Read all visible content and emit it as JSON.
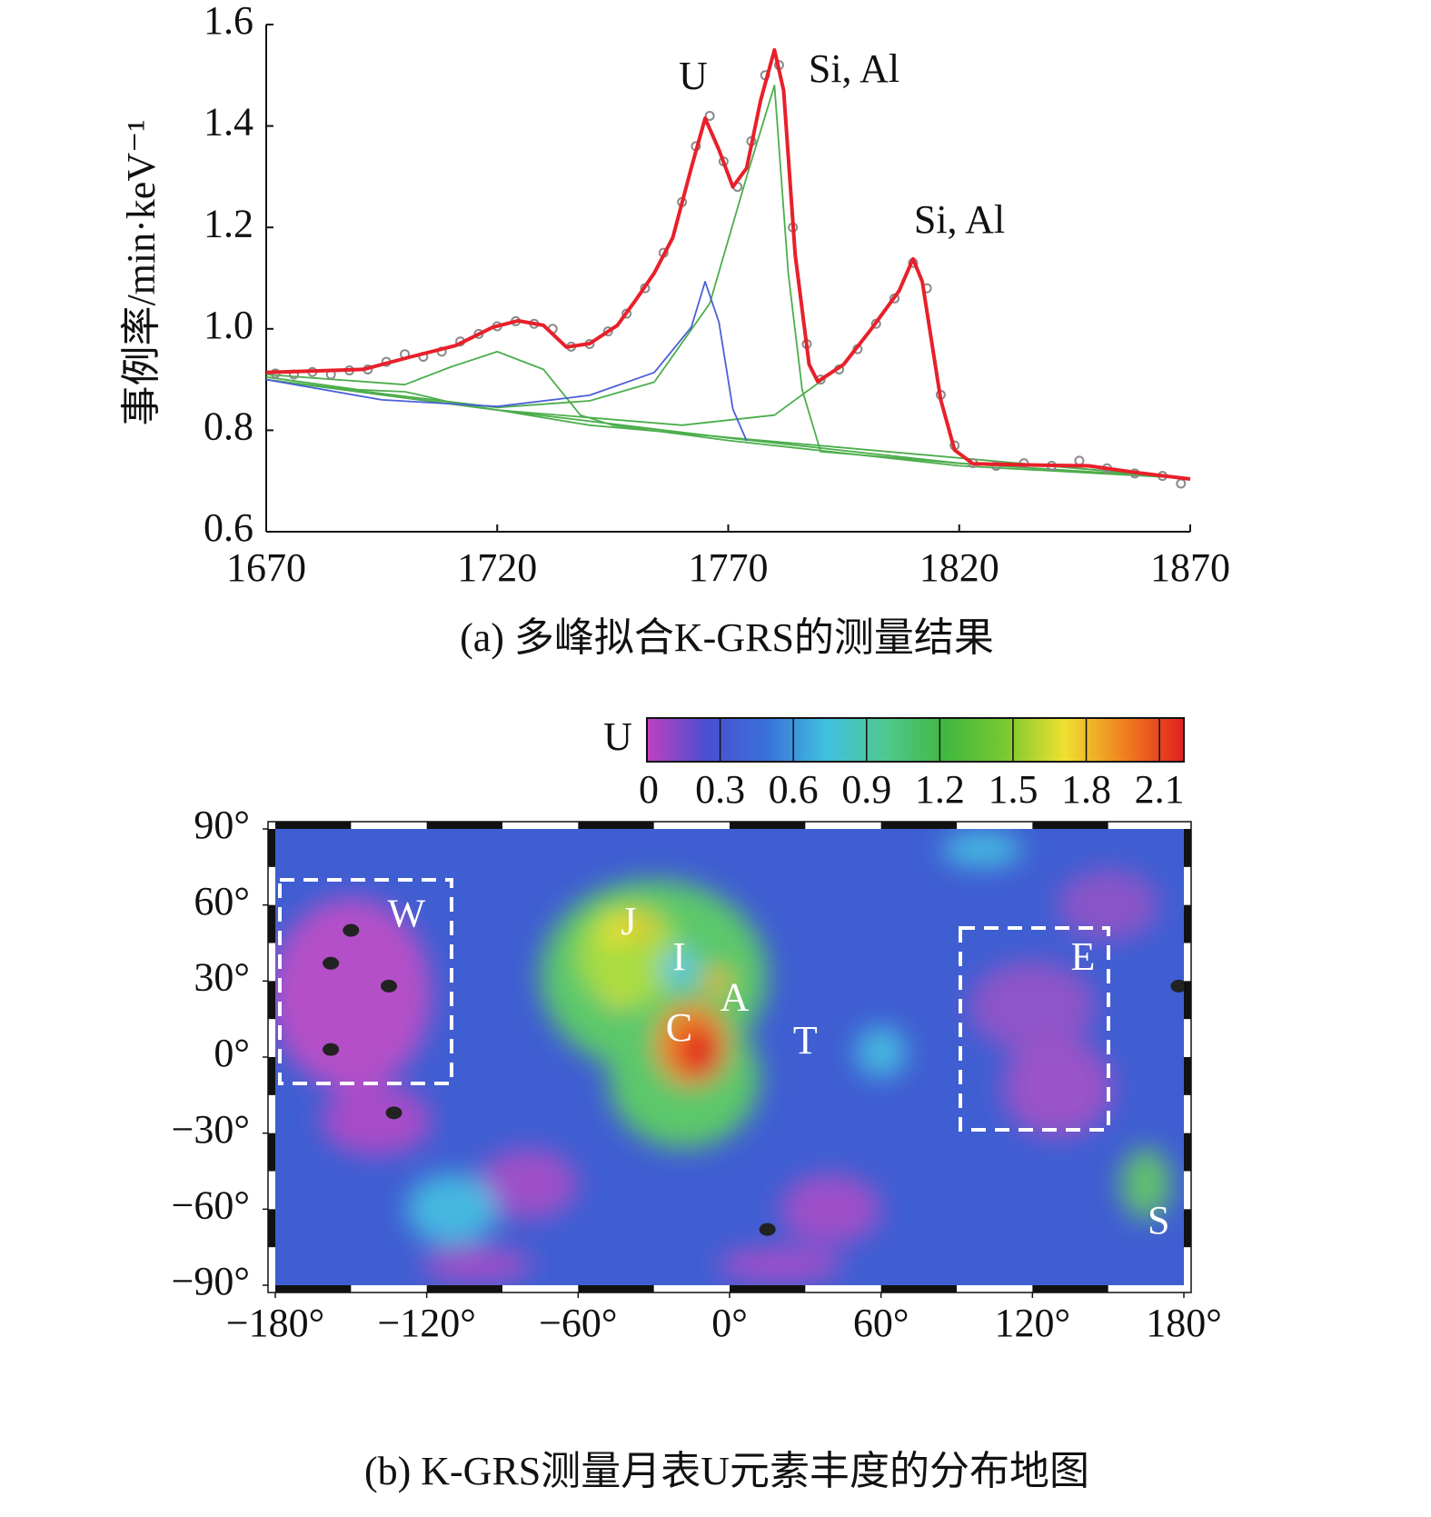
{
  "chart_data": [
    {
      "type": "line",
      "caption": "(a) 多峰拟合K-GRS的测量结果",
      "ylabel": "事例率/min·keV⁻¹",
      "xlim": [
        1670,
        1870
      ],
      "ylim": [
        0.6,
        1.6
      ],
      "xticks": [
        1670,
        1720,
        1770,
        1820,
        1870
      ],
      "yticks": [
        0.6,
        0.8,
        {
          "value": 1,
          "label": "1.0"
        },
        1.2,
        1.4,
        1.6
      ],
      "annotations": [
        "U",
        "Si, Al",
        "Si, Al"
      ],
      "series": [
        {
          "style": "line",
          "color": "#4cae4c",
          "x": [
            1670,
            1720,
            1770,
            1820,
            1870
          ],
          "values": [
            0.9,
            0.84,
            0.785,
            0.735,
            0.705
          ]
        },
        {
          "style": "line",
          "color": "#4cae4c",
          "x": [
            1670,
            1690,
            1700,
            1703,
            1710,
            1740,
            1870
          ],
          "values": [
            0.905,
            0.88,
            0.876,
            0.87,
            0.855,
            0.81,
            0.705
          ]
        },
        {
          "style": "line",
          "color": "#4cae4c",
          "x": [
            1670,
            1700,
            1710,
            1720,
            1730,
            1738,
            1745,
            1770,
            1820,
            1870
          ],
          "values": [
            0.91,
            0.89,
            0.925,
            0.955,
            0.92,
            0.83,
            0.81,
            0.78,
            0.73,
            0.705
          ]
        },
        {
          "style": "line",
          "color": "#4cae4c",
          "x": [
            1670,
            1720,
            1760,
            1780,
            1795,
            1801,
            1807,
            1810,
            1812,
            1816,
            1819,
            1823,
            1840,
            1870
          ],
          "values": [
            0.9,
            0.84,
            0.81,
            0.83,
            0.93,
            1.0,
            1.075,
            1.138,
            1.093,
            0.86,
            0.761,
            0.734,
            0.73,
            0.705
          ]
        },
        {
          "style": "line",
          "color": "#4cae4c",
          "x": [
            1670,
            1720,
            1740,
            1754,
            1766,
            1774,
            1780,
            1783,
            1786,
            1790,
            1820,
            1870
          ],
          "values": [
            0.9,
            0.845,
            0.858,
            0.895,
            1.05,
            1.3,
            1.48,
            1.11,
            0.88,
            0.758,
            0.735,
            0.705
          ]
        },
        {
          "style": "line",
          "color": "#4a5fd8",
          "x": [
            1670,
            1695,
            1720,
            1740,
            1754,
            1762,
            1765,
            1768,
            1771,
            1774
          ],
          "values": [
            0.9,
            0.86,
            0.847,
            0.869,
            0.914,
            1.003,
            1.093,
            1.013,
            0.842,
            0.779
          ]
        },
        {
          "style": "points",
          "color": "#8a8a8a",
          "x": [
            1672,
            1676,
            1680,
            1684,
            1688,
            1692,
            1696,
            1700,
            1704,
            1708,
            1712,
            1716,
            1720,
            1724,
            1728,
            1732,
            1736,
            1740,
            1744,
            1748,
            1752,
            1756,
            1760,
            1763,
            1766,
            1769,
            1772,
            1775,
            1778,
            1781,
            1784,
            1787,
            1790,
            1794,
            1798,
            1802,
            1806,
            1810,
            1813,
            1816,
            1819,
            1823,
            1828,
            1834,
            1840,
            1846,
            1852,
            1858,
            1864,
            1868
          ],
          "values": [
            0.912,
            0.91,
            0.915,
            0.91,
            0.918,
            0.92,
            0.935,
            0.95,
            0.945,
            0.955,
            0.975,
            0.99,
            1.005,
            1.015,
            1.01,
            1.0,
            0.965,
            0.97,
            0.995,
            1.03,
            1.08,
            1.15,
            1.25,
            1.36,
            1.42,
            1.33,
            1.28,
            1.37,
            1.5,
            1.52,
            1.2,
            0.97,
            0.9,
            0.92,
            0.96,
            1.01,
            1.06,
            1.13,
            1.08,
            0.87,
            0.77,
            0.735,
            0.73,
            0.735,
            0.73,
            0.74,
            0.725,
            0.715,
            0.71,
            0.695
          ]
        },
        {
          "style": "line",
          "color": "#e8202a",
          "x": [
            1670,
            1691,
            1701,
            1711,
            1719,
            1724.5,
            1730,
            1735,
            1740,
            1746,
            1750,
            1754,
            1758,
            1762,
            1765,
            1768,
            1771,
            1774,
            1777,
            1780,
            1782,
            1784.5,
            1787.5,
            1789.4,
            1795,
            1801,
            1807,
            1810,
            1812,
            1816,
            1819,
            1823,
            1838.6,
            1848,
            1858,
            1870
          ],
          "values": [
            0.914,
            0.92,
            0.944,
            0.967,
            1.003,
            1.016,
            1.007,
            0.964,
            0.971,
            1.007,
            1.057,
            1.11,
            1.18,
            1.317,
            1.415,
            1.353,
            1.28,
            1.317,
            1.45,
            1.55,
            1.47,
            1.146,
            0.93,
            0.896,
            0.93,
            1.0,
            1.075,
            1.138,
            1.093,
            0.86,
            0.761,
            0.734,
            0.731,
            0.73,
            0.717,
            0.704
          ]
        }
      ]
    },
    {
      "type": "map",
      "caption": "(b) K-GRS测量月表U元素丰度的分布地图",
      "colorbar": {
        "label": "U",
        "lim": [
          0,
          2.2
        ],
        "ticks": [
          0,
          0.3,
          0.6,
          0.9,
          1.2,
          1.5,
          1.8,
          2.1
        ],
        "colors": [
          "#c040c0",
          "#4a4fd0",
          "#3a70d8",
          "#40c0e0",
          "#50c890",
          "#40b840",
          "#78c830",
          "#f0e030",
          "#f08020",
          "#e02020"
        ]
      },
      "xlim": [
        -180,
        180
      ],
      "ylim": [
        -90,
        90
      ],
      "xticks": [
        {
          "value": -180,
          "label": "−180°"
        },
        {
          "value": -120,
          "label": "−120°"
        },
        {
          "value": -60,
          "label": "−60°"
        },
        {
          "value": 0,
          "label": "0°"
        },
        {
          "value": 60,
          "label": "60°"
        },
        {
          "value": 120,
          "label": "120°"
        },
        {
          "value": 180,
          "label": "180°"
        }
      ],
      "yticks": [
        {
          "value": -90,
          "label": "−90°"
        },
        {
          "value": -60,
          "label": "−60°"
        },
        {
          "value": -30,
          "label": "−30°"
        },
        {
          "value": 0,
          "label": "0°"
        },
        {
          "value": 30,
          "label": "30°"
        },
        {
          "value": 60,
          "label": "60°"
        },
        {
          "value": 90,
          "label": "90°"
        }
      ],
      "region_labels": [
        "W",
        "J",
        "I",
        "A",
        "C",
        "T",
        "E",
        "S"
      ]
    }
  ]
}
